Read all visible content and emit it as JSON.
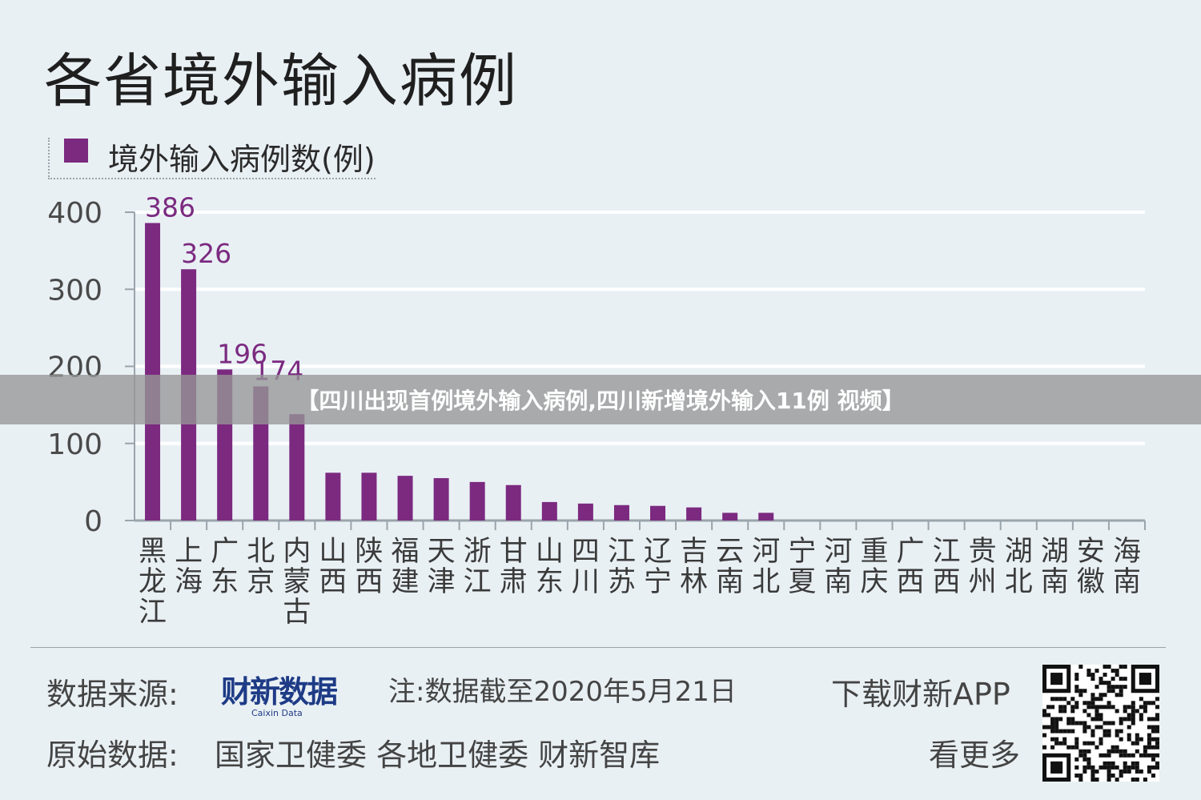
{
  "title": "各省境外输入病例",
  "banner": "【四川出现首例境外输入病例,四川新增境外输入11例 视频】",
  "footer": {
    "source_label": "数据来源:",
    "logo_cn": "财新数据",
    "logo_en": "Caixin Data",
    "note": "注:数据截至2020年5月21日",
    "download": "下载财新APP",
    "see_more": "看更多",
    "raw_label": "原始数据:",
    "raw_sources": "国家卫健委 各地卫健委 财新智库"
  },
  "colors": {
    "bar": "#7b2a80",
    "label": "#7b2a80",
    "background": "#e9f0f4",
    "grid": "#ffffff"
  },
  "chart_data": {
    "type": "bar",
    "title": "各省境外输入病例",
    "ylim": [
      0,
      400
    ],
    "yticks": [
      0,
      100,
      200,
      300,
      400
    ],
    "grid": true,
    "legend_position": "top-left",
    "categories": [
      "黑龙江",
      "上海",
      "广东",
      "北京",
      "内蒙古",
      "山西",
      "陕西",
      "福建",
      "天津",
      "浙江",
      "甘肃",
      "山东",
      "四川",
      "江苏",
      "辽宁",
      "吉林",
      "云南",
      "河北",
      "宁夏",
      "河南",
      "重庆",
      "广西",
      "江西",
      "贵州",
      "湖北",
      "湖南",
      "安徽",
      "海南"
    ],
    "series": [
      {
        "name": "境外输入病例数(例)",
        "values": [
          386,
          326,
          196,
          174,
          138,
          62,
          62,
          58,
          55,
          50,
          46,
          24,
          22,
          20,
          19,
          17,
          10,
          10,
          0,
          0,
          0,
          0,
          0,
          0,
          0,
          0,
          0,
          0
        ]
      }
    ],
    "data_labels": [
      {
        "index": 0,
        "text": "386"
      },
      {
        "index": 1,
        "text": "326"
      },
      {
        "index": 2,
        "text": "196"
      },
      {
        "index": 3,
        "text": "174"
      }
    ]
  }
}
